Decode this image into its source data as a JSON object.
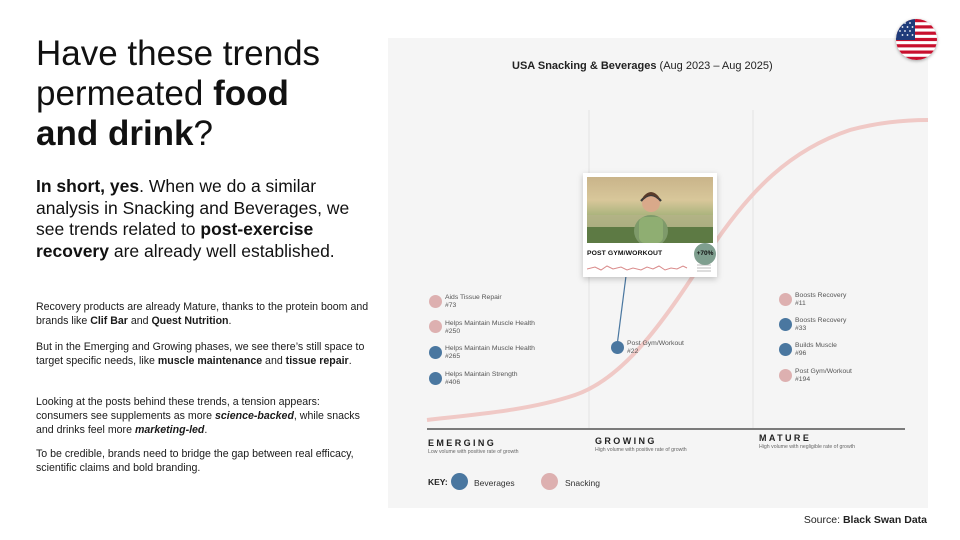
{
  "headline": {
    "line1": "Have these trends",
    "line2_plain": "permeated ",
    "line2_bold": "food",
    "line3_bold": "and drink",
    "line3_plain": "?"
  },
  "lede": {
    "bold1": "In short, yes",
    "plain1": ". When we do a similar analysis in Snacking and Beverages, we see trends related to ",
    "bold2": "post-exercise recovery",
    "plain2": " are already well established."
  },
  "paragraphs": {
    "p1": {
      "a": "Recovery products are already Mature, thanks to the protein boom and brands like ",
      "b1": "Clif Bar",
      "c": " and ",
      "b2": "Quest Nutrition",
      "d": "."
    },
    "p2": {
      "a": "But in the Emerging and Growing phases, we see there’s still space to target specific needs, like ",
      "b1": "muscle maintenance",
      "c": " and ",
      "b2": "tissue repair",
      "d": "."
    },
    "p3": {
      "a": "Looking at the posts behind these trends, a tension appears: consumers see supplements as more ",
      "i1": "science-backed",
      "c": ", while snacks and drinks feel more ",
      "i2": "marketing-led",
      "d": "."
    },
    "p4": {
      "a": "To be credible, brands need to bridge the gap between real efficacy, scientific claims and bold branding."
    }
  },
  "panel": {
    "title_bold": "USA Snacking & Beverages",
    "title_plain": " (Aug 2023 – Aug 2025)"
  },
  "flag_icon": "usa-flag-icon",
  "callout": {
    "label": "POST GYM/WORKOUT",
    "growth": "+70%"
  },
  "nodes": {
    "emerging": [
      {
        "name": "Aids Tissue Repair",
        "rank": "#73",
        "type": "Snacking"
      },
      {
        "name": "Helps Maintain Muscle Health",
        "rank": "#250",
        "type": "Snacking"
      },
      {
        "name": "Helps Maintain Muscle Health",
        "rank": "#265",
        "type": "Beverages"
      },
      {
        "name": "Helps Maintain Strength",
        "rank": "#406",
        "type": "Beverages"
      }
    ],
    "growing": [
      {
        "name": "Post Gym/Workout",
        "rank": "#22",
        "type": "Beverages"
      }
    ],
    "mature": [
      {
        "name": "Boosts Recovery",
        "rank": "#11",
        "type": "Snacking"
      },
      {
        "name": "Boosts Recovery",
        "rank": "#33",
        "type": "Beverages"
      },
      {
        "name": "Builds Muscle",
        "rank": "#96",
        "type": "Beverages"
      },
      {
        "name": "Post Gym/Workout",
        "rank": "#194",
        "type": "Snacking"
      }
    ]
  },
  "phases": [
    {
      "name": "EMERGING",
      "sub": "Low volume with positive rate of growth"
    },
    {
      "name": "GROWING",
      "sub": "High volume with positive rate of growth"
    },
    {
      "name": "MATURE",
      "sub": "High volume with negligible rate of growth"
    }
  ],
  "key": {
    "label": "KEY:",
    "beverages": "Beverages",
    "snacking": "Snacking"
  },
  "colors": {
    "beverages": "#4a77a0",
    "snacking": "#ddb0b0",
    "curve": "#f0c9c6"
  },
  "source": {
    "prefix": "Source: ",
    "name": "Black Swan Data"
  }
}
